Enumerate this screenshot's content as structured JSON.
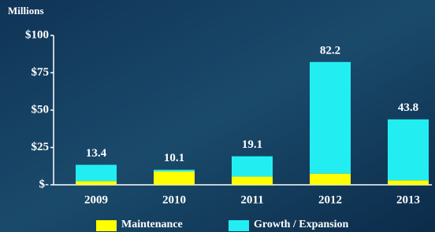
{
  "chart_data": {
    "type": "stacked-bar",
    "y_label": "Millions",
    "categories": [
      "2009",
      "2010",
      "2011",
      "2012",
      "2013"
    ],
    "series": [
      {
        "name": "Maintenance",
        "color": "#ffff00",
        "values": [
          2.5,
          9,
          5.5,
          7.5,
          3
        ]
      },
      {
        "name": "Growth / Expansion",
        "color": "#22eef2",
        "values": [
          10.9,
          1.1,
          13.6,
          74.7,
          40.8
        ]
      }
    ],
    "totals": [
      13.4,
      10.1,
      19.1,
      82.2,
      43.8
    ],
    "ylim": [
      0,
      100
    ],
    "yticks": [
      {
        "value": 0,
        "label": "$-"
      },
      {
        "value": 25,
        "label": "$25"
      },
      {
        "value": 50,
        "label": "$50"
      },
      {
        "value": 75,
        "label": "$75"
      },
      {
        "value": 100,
        "label": "$100"
      }
    ],
    "grid": false
  }
}
